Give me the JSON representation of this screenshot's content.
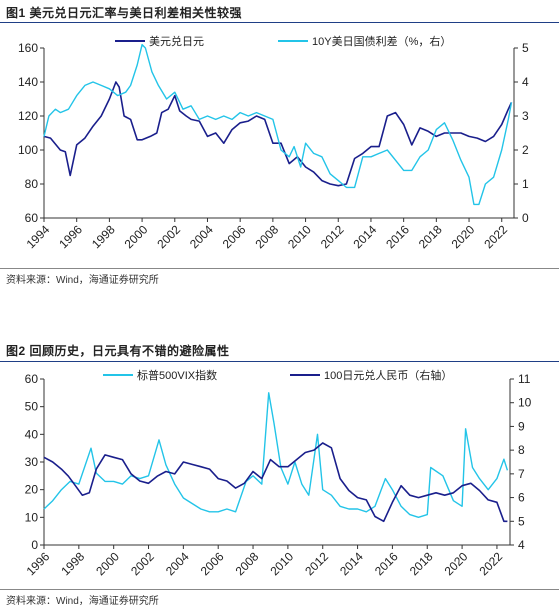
{
  "figure1": {
    "title": "图1  美元兑日元汇率与美日利差相关性较强",
    "source": "资料来源：Wind，海通证券研究所"
  },
  "figure2": {
    "title": "图2  回顾历史，日元具有不错的避险属性",
    "source": "资料来源：Wind，海通证券研究所"
  },
  "colors": {
    "dark": "#1a1f8c",
    "light": "#23c4e8",
    "rule": "#1f3f86"
  },
  "chart_data": [
    {
      "type": "line",
      "title": "",
      "xlabel": "",
      "ylabel": "",
      "xlim": [
        1994.0,
        2022.75
      ],
      "ylim_left": [
        60,
        160
      ],
      "ylim_right": [
        0,
        5
      ],
      "left_ticks": [
        "60",
        "80",
        "100",
        "120",
        "140",
        "160"
      ],
      "right_ticks": [
        "0",
        "1",
        "2",
        "3",
        "4",
        "5"
      ],
      "x_ticks": [
        "1994",
        "1996",
        "1998",
        "2000",
        "2002",
        "2004",
        "2006",
        "2008",
        "2010",
        "2012",
        "2014",
        "2016",
        "2018",
        "2020",
        "2022"
      ],
      "legend_position": "top",
      "series": [
        {
          "name": "美元兑日元",
          "axis": "left",
          "color": "#1a1f8c",
          "x": [
            1994.0,
            1994.4,
            1995.0,
            1995.3,
            1995.6,
            1996.0,
            1996.5,
            1997.0,
            1997.5,
            1998.0,
            1998.4,
            1998.6,
            1998.9,
            1999.3,
            1999.7,
            2000.0,
            2000.5,
            2000.9,
            2001.2,
            2001.6,
            2002.0,
            2002.3,
            2002.7,
            2003.0,
            2003.5,
            2004.0,
            2004.5,
            2005.0,
            2005.5,
            2006.0,
            2006.5,
            2007.0,
            2007.5,
            2008.0,
            2008.5,
            2009.0,
            2009.5,
            2010.0,
            2010.5,
            2011.0,
            2011.5,
            2012.0,
            2012.5,
            2013.0,
            2013.5,
            2014.0,
            2014.5,
            2015.0,
            2015.5,
            2016.0,
            2016.5,
            2017.0,
            2017.5,
            2018.0,
            2018.5,
            2019.0,
            2019.5,
            2020.0,
            2020.5,
            2021.0,
            2021.5,
            2022.0,
            2022.4,
            2022.6
          ],
          "values": [
            108,
            107,
            100,
            99,
            85,
            103,
            107,
            114,
            120,
            130,
            140,
            137,
            120,
            118,
            106,
            106,
            108,
            110,
            122,
            124,
            132,
            123,
            120,
            118,
            117,
            108,
            110,
            104,
            112,
            116,
            117,
            120,
            118,
            104,
            104,
            92,
            96,
            90,
            87,
            82,
            80,
            79,
            80,
            95,
            98,
            102,
            102,
            120,
            122,
            115,
            103,
            113,
            111,
            108,
            110,
            110,
            110,
            108,
            107,
            105,
            108,
            115,
            124,
            128
          ]
        },
        {
          "name": "10Y美日国债利差（%，右）",
          "axis": "right",
          "color": "#23c4e8",
          "x": [
            1994.0,
            1994.3,
            1994.7,
            1995.0,
            1995.5,
            1996.0,
            1996.5,
            1997.0,
            1997.5,
            1998.0,
            1998.5,
            1999.0,
            1999.3,
            1999.7,
            2000.0,
            2000.2,
            2000.6,
            2001.0,
            2001.5,
            2002.0,
            2002.5,
            2003.0,
            2003.5,
            2004.0,
            2004.5,
            2005.0,
            2005.5,
            2006.0,
            2006.5,
            2007.0,
            2007.5,
            2008.0,
            2008.5,
            2009.0,
            2009.3,
            2009.7,
            2010.0,
            2010.5,
            2011.0,
            2011.5,
            2012.0,
            2012.5,
            2013.0,
            2013.5,
            2014.0,
            2014.5,
            2015.0,
            2015.5,
            2016.0,
            2016.5,
            2017.0,
            2017.5,
            2018.0,
            2018.5,
            2019.0,
            2019.5,
            2020.0,
            2020.3,
            2020.6,
            2021.0,
            2021.5,
            2022.0,
            2022.4,
            2022.6
          ],
          "values": [
            2.4,
            3.0,
            3.2,
            3.1,
            3.2,
            3.6,
            3.9,
            4.0,
            3.9,
            3.8,
            3.6,
            3.7,
            3.9,
            4.5,
            5.1,
            5.0,
            4.3,
            3.9,
            3.5,
            3.7,
            3.2,
            3.3,
            2.9,
            3.0,
            2.9,
            3.0,
            2.9,
            3.1,
            3.0,
            3.1,
            3.0,
            2.9,
            2.0,
            1.8,
            2.1,
            1.5,
            2.2,
            1.9,
            1.8,
            1.3,
            1.1,
            0.9,
            0.9,
            1.8,
            1.8,
            1.9,
            2.0,
            1.7,
            1.4,
            1.4,
            1.8,
            2.0,
            2.6,
            2.8,
            2.3,
            1.7,
            1.2,
            0.4,
            0.4,
            1.0,
            1.2,
            2.0,
            2.9,
            3.4
          ]
        }
      ]
    },
    {
      "type": "line",
      "title": "",
      "xlabel": "",
      "ylabel": "",
      "xlim": [
        1996.0,
        2022.75
      ],
      "ylim_left": [
        0,
        60
      ],
      "ylim_right": [
        4,
        11
      ],
      "left_ticks": [
        "0",
        "10",
        "20",
        "30",
        "40",
        "50",
        "60"
      ],
      "right_ticks": [
        "4",
        "5",
        "6",
        "7",
        "8",
        "9",
        "10",
        "11"
      ],
      "x_ticks": [
        "1996",
        "1998",
        "2000",
        "2002",
        "2004",
        "2006",
        "2008",
        "2010",
        "2012",
        "2014",
        "2016",
        "2018",
        "2020",
        "2022"
      ],
      "legend_position": "top",
      "series": [
        {
          "name": "标普500VIX指数",
          "axis": "left",
          "color": "#23c4e8",
          "x": [
            1996.0,
            1996.5,
            1997.0,
            1997.5,
            1998.0,
            1998.7,
            1999.0,
            1999.5,
            2000.0,
            2000.5,
            2001.0,
            2001.5,
            2002.0,
            2002.6,
            2003.0,
            2003.5,
            2004.0,
            2004.5,
            2005.0,
            2005.5,
            2006.0,
            2006.5,
            2007.0,
            2007.6,
            2008.0,
            2008.5,
            2008.9,
            2009.2,
            2009.6,
            2010.0,
            2010.4,
            2010.8,
            2011.2,
            2011.7,
            2012.0,
            2012.5,
            2013.0,
            2013.5,
            2014.0,
            2014.5,
            2015.0,
            2015.6,
            2016.0,
            2016.5,
            2017.0,
            2017.5,
            2018.0,
            2018.2,
            2018.9,
            2019.5,
            2020.0,
            2020.2,
            2020.6,
            2021.0,
            2021.5,
            2022.0,
            2022.4,
            2022.6
          ],
          "values": [
            13,
            16,
            20,
            23,
            22,
            35,
            26,
            23,
            23,
            22,
            25,
            24,
            25,
            38,
            29,
            22,
            17,
            15,
            13,
            12,
            12,
            13,
            12,
            23,
            25,
            22,
            55,
            44,
            28,
            22,
            30,
            22,
            18,
            40,
            20,
            18,
            14,
            13,
            13,
            12,
            14,
            24,
            20,
            14,
            11,
            10,
            11,
            28,
            25,
            16,
            14,
            42,
            28,
            24,
            20,
            24,
            31,
            27
          ]
        },
        {
          "name": "100日元兑人民币（右轴）",
          "axis": "right",
          "color": "#1a1f8c",
          "x": [
            1996.0,
            1996.5,
            1997.0,
            1997.4,
            1997.8,
            1998.2,
            1998.6,
            1999.0,
            1999.5,
            2000.0,
            2000.5,
            2001.0,
            2001.5,
            2002.0,
            2002.5,
            2003.0,
            2003.5,
            2004.0,
            2004.5,
            2005.0,
            2005.5,
            2006.0,
            2006.5,
            2007.0,
            2007.5,
            2008.0,
            2008.5,
            2009.0,
            2009.5,
            2010.0,
            2010.5,
            2011.0,
            2011.5,
            2012.0,
            2012.5,
            2013.0,
            2013.5,
            2014.0,
            2014.5,
            2015.0,
            2015.5,
            2016.0,
            2016.5,
            2017.0,
            2017.5,
            2018.0,
            2018.5,
            2019.0,
            2019.5,
            2020.0,
            2020.5,
            2021.0,
            2021.5,
            2022.0,
            2022.4,
            2022.6
          ],
          "values": [
            7.7,
            7.5,
            7.2,
            6.9,
            6.5,
            6.1,
            6.2,
            7.2,
            7.8,
            7.7,
            7.6,
            7.0,
            6.7,
            6.6,
            6.9,
            7.1,
            7.0,
            7.5,
            7.4,
            7.3,
            7.2,
            6.8,
            6.7,
            6.4,
            6.6,
            7.1,
            6.8,
            7.6,
            7.3,
            7.3,
            7.6,
            7.9,
            8.0,
            8.3,
            8.1,
            6.8,
            6.3,
            6.0,
            5.9,
            5.2,
            5.0,
            5.8,
            6.5,
            6.1,
            6.0,
            6.1,
            6.2,
            6.1,
            6.2,
            6.5,
            6.6,
            6.3,
            5.9,
            5.8,
            5.0,
            5.0
          ]
        }
      ]
    }
  ]
}
